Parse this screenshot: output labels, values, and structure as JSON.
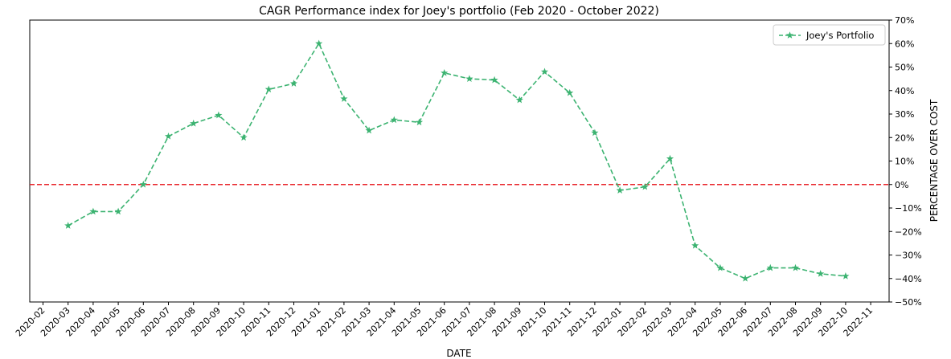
{
  "chart_data": {
    "type": "line",
    "title": "CAGR Performance index for Joey's portfolio (Feb 2020 - October 2022)",
    "xlabel": "DATE",
    "ylabel": "PERCENTAGE OVER COST",
    "x_ticks": [
      "2020-02",
      "2020-03",
      "2020-04",
      "2020-05",
      "2020-06",
      "2020-07",
      "2020-08",
      "2020-09",
      "2020-10",
      "2020-11",
      "2020-12",
      "2021-01",
      "2021-02",
      "2021-03",
      "2021-04",
      "2021-05",
      "2021-06",
      "2021-07",
      "2021-08",
      "2021-09",
      "2021-10",
      "2021-11",
      "2021-12",
      "2022-01",
      "2022-02",
      "2022-03",
      "2022-04",
      "2022-05",
      "2022-06",
      "2022-07",
      "2022-08",
      "2022-09",
      "2022-10",
      "2022-11"
    ],
    "y_ticks": [
      "−50%",
      "−40%",
      "−30%",
      "−20%",
      "−10%",
      "0%",
      "10%",
      "20%",
      "30%",
      "40%",
      "50%",
      "60%",
      "70%"
    ],
    "ylim": [
      -50,
      70
    ],
    "y_axis_side": "right",
    "legend_position": "top-right",
    "grid": false,
    "series": [
      {
        "name": "Joey's Portfolio",
        "color": "#3cb371",
        "line_style": "dashed",
        "marker": "star",
        "x": [
          "2020-03",
          "2020-04",
          "2020-05",
          "2020-06",
          "2020-07",
          "2020-08",
          "2020-09",
          "2020-10",
          "2020-11",
          "2020-12",
          "2021-01",
          "2021-02",
          "2021-03",
          "2021-04",
          "2021-05",
          "2021-06",
          "2021-07",
          "2021-08",
          "2021-09",
          "2021-10",
          "2021-11",
          "2021-12",
          "2022-01",
          "2022-02",
          "2022-03",
          "2022-04",
          "2022-05",
          "2022-06",
          "2022-07",
          "2022-08",
          "2022-09",
          "2022-10"
        ],
        "values": [
          -17.5,
          -11.5,
          -11.5,
          0,
          20.5,
          26,
          29.5,
          20,
          40.5,
          43,
          60,
          36.5,
          23,
          27.5,
          26.5,
          47.5,
          45,
          44.5,
          36,
          48,
          39,
          22,
          -2.5,
          -1,
          11,
          -26,
          -35.5,
          -40,
          -35.5,
          -35.5,
          -38,
          -39
        ]
      }
    ],
    "reference_lines": [
      {
        "y": 0,
        "color": "#e8262b",
        "line_style": "dashed"
      }
    ]
  }
}
